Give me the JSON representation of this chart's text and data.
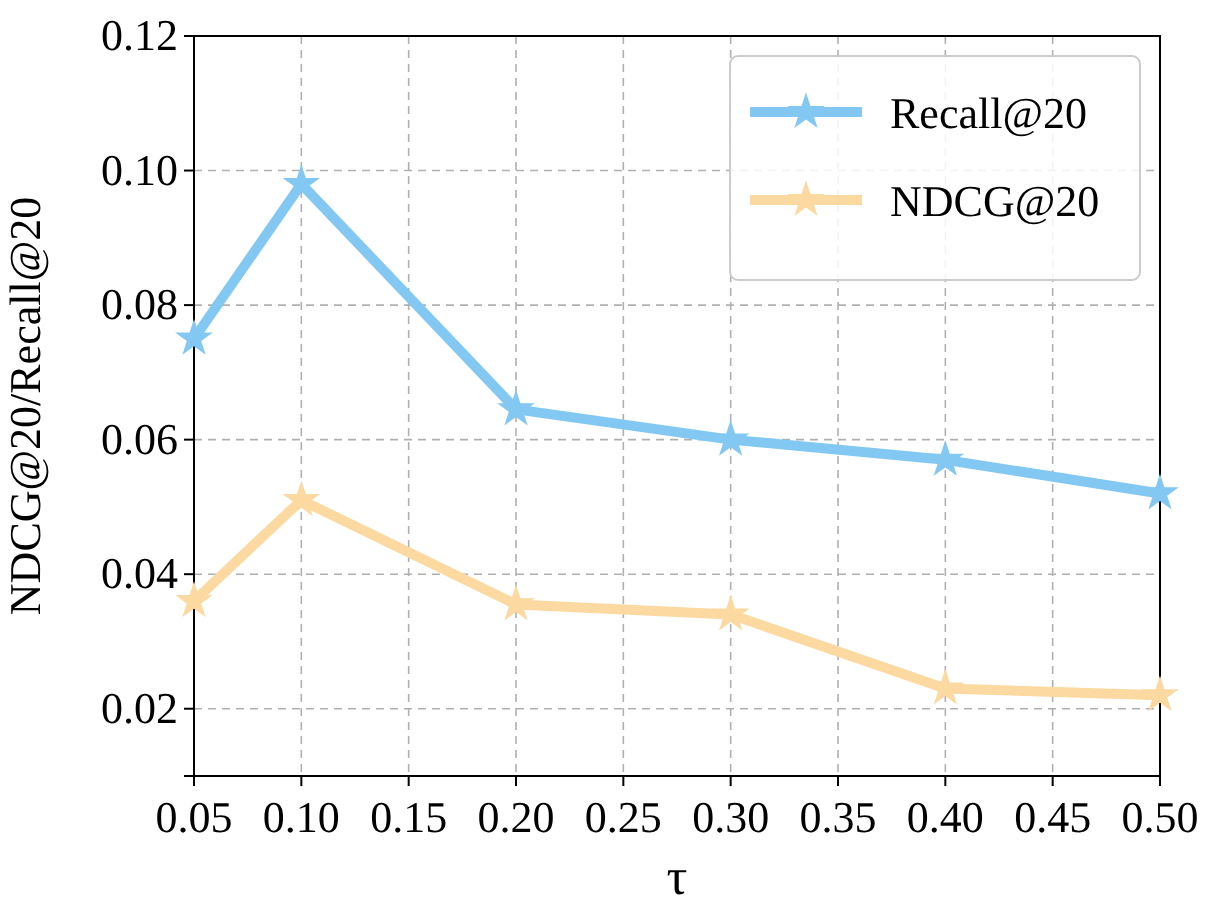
{
  "chart_data": {
    "type": "line",
    "xlabel": "τ",
    "ylabel": "NDCG@20/Recall@20",
    "x": [
      0.05,
      0.1,
      0.2,
      0.3,
      0.4,
      0.5
    ],
    "series": [
      {
        "name": "Recall@20",
        "color": "#82c8f2",
        "values": [
          0.075,
          0.098,
          0.0645,
          0.06,
          0.057,
          0.052
        ]
      },
      {
        "name": "NDCG@20",
        "color": "#fbd9a0",
        "values": [
          0.036,
          0.051,
          0.0355,
          0.034,
          0.023,
          0.022
        ]
      }
    ],
    "xlim": [
      0.05,
      0.5
    ],
    "xticks": [
      {
        "value": 0.05,
        "label": "0.05"
      },
      {
        "value": 0.1,
        "label": "0.10"
      },
      {
        "value": 0.15,
        "label": "0.15"
      },
      {
        "value": 0.2,
        "label": "0.20"
      },
      {
        "value": 0.25,
        "label": "0.25"
      },
      {
        "value": 0.3,
        "label": "0.30"
      },
      {
        "value": 0.35,
        "label": "0.35"
      },
      {
        "value": 0.4,
        "label": "0.40"
      },
      {
        "value": 0.45,
        "label": "0.45"
      },
      {
        "value": 0.5,
        "label": "0.50"
      }
    ],
    "ylim": [
      0.01,
      0.12
    ],
    "yticks": [
      {
        "value": 0.02,
        "label": "0.02"
      },
      {
        "value": 0.04,
        "label": "0.04"
      },
      {
        "value": 0.06,
        "label": "0.06"
      },
      {
        "value": 0.08,
        "label": "0.08"
      },
      {
        "value": 0.1,
        "label": "0.10"
      },
      {
        "value": 0.12,
        "label": "0.12"
      }
    ],
    "grid": true,
    "legend": "top right",
    "marker": "star",
    "line_style": "solid"
  }
}
